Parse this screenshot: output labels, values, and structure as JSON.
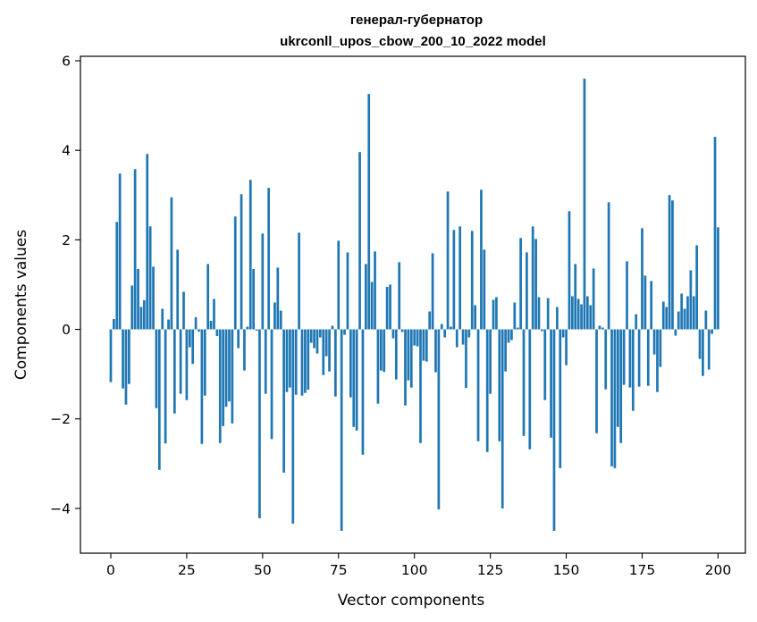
{
  "chart_data": {
    "type": "bar",
    "title_line1": "генерал-губернатор",
    "title_line2": "ukrconll_upos_cbow_200_10_2022 model",
    "xlabel": "Vector components",
    "ylabel": "Components values",
    "xlim": [
      -10,
      209
    ],
    "ylim": [
      -5,
      6.1
    ],
    "xticks": [
      0,
      25,
      50,
      75,
      100,
      125,
      150,
      175,
      200
    ],
    "yticks": [
      -4,
      -2,
      0,
      2,
      4,
      6
    ],
    "xtick_labels": [
      "0",
      "25",
      "50",
      "75",
      "100",
      "125",
      "150",
      "175",
      "200"
    ],
    "ytick_labels": [
      "−4",
      "−2",
      "0",
      "2",
      "4",
      "6"
    ],
    "bar_color": "#1f77b4",
    "grid": false,
    "values": [
      -1.18,
      0.23,
      2.4,
      3.48,
      -1.32,
      -1.68,
      -1.22,
      0.98,
      3.58,
      1.35,
      0.5,
      0.65,
      3.92,
      2.3,
      1.4,
      -1.76,
      -3.14,
      0.46,
      -2.55,
      0.22,
      2.95,
      -1.88,
      1.78,
      -1.44,
      0.84,
      -1.58,
      -0.4,
      -0.77,
      0.27,
      -0.05,
      -2.56,
      -1.48,
      1.46,
      0.19,
      0.68,
      -0.15,
      -2.54,
      -2.16,
      -1.73,
      -1.61,
      -2.1,
      2.52,
      -0.42,
      3.02,
      -0.92,
      0.06,
      3.34,
      1.35,
      -0.03,
      -4.22,
      2.14,
      -1.44,
      3.16,
      -2.45,
      0.6,
      1.38,
      0.42,
      -3.2,
      -1.4,
      -1.3,
      -4.34,
      -1.46,
      2.16,
      -1.48,
      -1.42,
      -1.35,
      -0.3,
      -0.42,
      -0.54,
      -0.18,
      -1.02,
      -0.6,
      -0.94,
      0.08,
      -1.5,
      1.98,
      -4.5,
      -0.12,
      1.72,
      -1.52,
      -2.18,
      -2.26,
      3.96,
      -2.8,
      1.46,
      5.26,
      1.06,
      1.74,
      -1.66,
      -0.92,
      -0.95,
      0.95,
      1.0,
      -0.2,
      -1.12,
      1.5,
      -0.06,
      -1.7,
      -1.14,
      -1.3,
      -0.36,
      -0.38,
      -2.54,
      -0.7,
      -0.72,
      0.4,
      1.7,
      -0.96,
      -4.02,
      0.12,
      -0.18,
      3.08,
      0.06,
      2.22,
      -0.4,
      2.3,
      -0.34,
      -1.31,
      -0.18,
      2.2,
      0.54,
      -2.5,
      3.12,
      1.78,
      -2.74,
      -1.44,
      0.66,
      0.72,
      -2.5,
      -4.0,
      -0.94,
      -0.3,
      -0.24,
      0.6,
      0.04,
      2.04,
      -2.38,
      1.72,
      -2.68,
      2.3,
      2.02,
      0.72,
      -0.04,
      -1.58,
      0.7,
      -2.42,
      -4.5,
      0.5,
      -3.1,
      -0.18,
      -0.8,
      2.64,
      0.74,
      1.46,
      0.68,
      0.56,
      5.6,
      0.74,
      0.54,
      1.36,
      -2.32,
      0.08,
      0.04,
      -1.34,
      2.84,
      -3.06,
      -3.1,
      -2.18,
      -2.54,
      -1.24,
      1.52,
      -1.3,
      -1.82,
      0.34,
      -1.28,
      2.26,
      1.2,
      -1.26,
      1.08,
      -0.56,
      -1.4,
      -0.84,
      0.62,
      0.5,
      3.0,
      2.88,
      -0.14,
      0.4,
      0.8,
      0.46,
      0.74,
      1.32,
      0.74,
      1.88,
      -0.66,
      -1.04,
      0.42,
      -0.9,
      -0.1,
      4.3,
      2.28
    ]
  }
}
